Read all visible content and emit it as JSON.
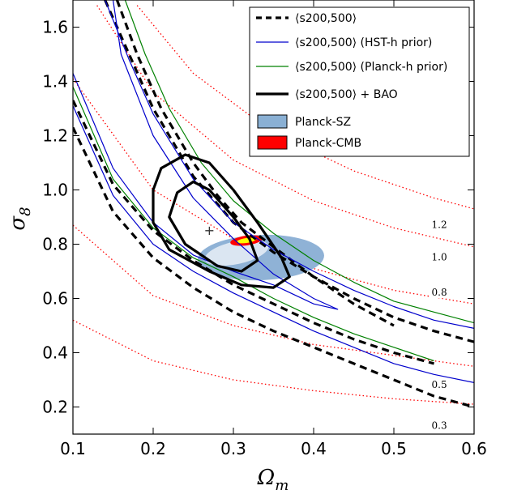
{
  "chart_data": {
    "type": "line",
    "xlabel": "Ω_m",
    "ylabel": "σ_8",
    "xlim": [
      0.1,
      0.6
    ],
    "ylim": [
      0.1,
      1.7
    ],
    "xticks": [
      0.1,
      0.2,
      0.3,
      0.4,
      0.5,
      0.6
    ],
    "yticks": [
      0.2,
      0.4,
      0.6,
      0.8,
      1.0,
      1.2,
      1.4,
      1.6
    ],
    "xtick_labels": [
      "0.1",
      "0.2",
      "0.3",
      "0.4",
      "0.5",
      "0.6"
    ],
    "ytick_labels": [
      "0.2",
      "0.4",
      "0.6",
      "0.8",
      "1.0",
      "1.2",
      "1.4",
      "1.6"
    ],
    "grid": false,
    "legend_position": "top-right",
    "legend": [
      {
        "label": "⟨s200,500⟩",
        "style": "dashed",
        "color": "#000000"
      },
      {
        "label": "⟨s200,500⟩ (HST-h prior)",
        "style": "solid",
        "color": "#0000cc"
      },
      {
        "label": "⟨s200,500⟩ (Planck-h prior)",
        "style": "solid",
        "color": "#008000"
      },
      {
        "label": "⟨s200,500⟩ + BAO",
        "style": "thick",
        "color": "#000000"
      },
      {
        "label": "Planck-SZ",
        "style": "patch",
        "color": "#8ab0d4"
      },
      {
        "label": "Planck-CMB",
        "style": "patch",
        "color": "#ff0000"
      }
    ],
    "reference_curve_labels": [
      {
        "text": "1.2",
        "x": 0.547,
        "y": 0.86
      },
      {
        "text": "1.0",
        "x": 0.547,
        "y": 0.74
      },
      {
        "text": "0.8",
        "x": 0.547,
        "y": 0.61
      },
      {
        "text": "0.5",
        "x": 0.547,
        "y": 0.27
      },
      {
        "text": "0.3",
        "x": 0.547,
        "y": 0.12
      }
    ],
    "reference_curves": [
      {
        "name": "1.2",
        "color": "#ff0000",
        "points": [
          [
            0.18,
            1.68
          ],
          [
            0.25,
            1.43
          ],
          [
            0.35,
            1.21
          ],
          [
            0.45,
            1.07
          ],
          [
            0.55,
            0.97
          ],
          [
            0.6,
            0.93
          ]
        ]
      },
      {
        "name": "1.0",
        "color": "#ff0000",
        "points": [
          [
            0.13,
            1.68
          ],
          [
            0.2,
            1.36
          ],
          [
            0.3,
            1.11
          ],
          [
            0.4,
            0.96
          ],
          [
            0.5,
            0.86
          ],
          [
            0.6,
            0.79
          ]
        ]
      },
      {
        "name": "0.8",
        "color": "#ff0000",
        "points": [
          [
            0.1,
            1.41
          ],
          [
            0.2,
            1.0
          ],
          [
            0.3,
            0.82
          ],
          [
            0.4,
            0.71
          ],
          [
            0.5,
            0.63
          ],
          [
            0.6,
            0.58
          ]
        ]
      },
      {
        "name": "0.5",
        "color": "#ff0000",
        "points": [
          [
            0.1,
            0.87
          ],
          [
            0.2,
            0.61
          ],
          [
            0.3,
            0.5
          ],
          [
            0.4,
            0.43
          ],
          [
            0.5,
            0.39
          ],
          [
            0.6,
            0.35
          ]
        ]
      },
      {
        "name": "0.3",
        "color": "#ff0000",
        "points": [
          [
            0.1,
            0.52
          ],
          [
            0.2,
            0.37
          ],
          [
            0.3,
            0.3
          ],
          [
            0.4,
            0.26
          ],
          [
            0.5,
            0.23
          ],
          [
            0.6,
            0.21
          ]
        ]
      }
    ],
    "series": [
      {
        "label": "dashed",
        "color": "#000000",
        "width": 3.2,
        "dash": "9,6",
        "points": [
          [
            0.14,
            1.7
          ],
          [
            0.17,
            1.5
          ],
          [
            0.2,
            1.3
          ],
          [
            0.25,
            1.05
          ],
          [
            0.3,
            0.88
          ],
          [
            0.35,
            0.77
          ],
          [
            0.4,
            0.68
          ],
          [
            0.45,
            0.6
          ],
          [
            0.5,
            0.53
          ],
          [
            0.55,
            0.48
          ],
          [
            0.6,
            0.44
          ]
        ]
      },
      {
        "label": "dashed",
        "color": "#000000",
        "width": 3.2,
        "dash": "9,6",
        "points": [
          [
            0.155,
            1.7
          ],
          [
            0.18,
            1.5
          ],
          [
            0.21,
            1.3
          ],
          [
            0.25,
            1.1
          ],
          [
            0.28,
            0.98
          ],
          [
            0.31,
            0.88
          ],
          [
            0.35,
            0.79
          ],
          [
            0.4,
            0.68
          ],
          [
            0.45,
            0.58
          ],
          [
            0.5,
            0.5
          ]
        ]
      },
      {
        "label": "dashed",
        "color": "#000000",
        "width": 3.2,
        "dash": "9,6",
        "points": [
          [
            0.1,
            1.33
          ],
          [
            0.15,
            1.02
          ],
          [
            0.2,
            0.85
          ],
          [
            0.25,
            0.74
          ],
          [
            0.3,
            0.65
          ],
          [
            0.35,
            0.58
          ],
          [
            0.4,
            0.51
          ],
          [
            0.45,
            0.45
          ],
          [
            0.5,
            0.4
          ],
          [
            0.55,
            0.36
          ]
        ]
      },
      {
        "label": "dashed",
        "color": "#000000",
        "width": 3.2,
        "dash": "9,6",
        "points": [
          [
            0.1,
            1.23
          ],
          [
            0.15,
            0.92
          ],
          [
            0.2,
            0.75
          ],
          [
            0.25,
            0.64
          ],
          [
            0.3,
            0.55
          ],
          [
            0.35,
            0.48
          ],
          [
            0.4,
            0.42
          ],
          [
            0.45,
            0.36
          ],
          [
            0.5,
            0.3
          ],
          [
            0.55,
            0.24
          ],
          [
            0.6,
            0.2
          ]
        ]
      },
      {
        "label": "blue",
        "color": "#0000cc",
        "width": 1.2,
        "dash": "",
        "points": [
          [
            0.14,
            1.7
          ],
          [
            0.17,
            1.48
          ],
          [
            0.2,
            1.28
          ],
          [
            0.25,
            1.04
          ],
          [
            0.3,
            0.88
          ],
          [
            0.35,
            0.78
          ],
          [
            0.4,
            0.7
          ],
          [
            0.45,
            0.63
          ],
          [
            0.5,
            0.57
          ],
          [
            0.55,
            0.52
          ],
          [
            0.6,
            0.49
          ]
        ]
      },
      {
        "label": "blue",
        "color": "#0000cc",
        "width": 1.2,
        "dash": "",
        "points": [
          [
            0.1,
            1.43
          ],
          [
            0.15,
            1.08
          ],
          [
            0.2,
            0.88
          ],
          [
            0.25,
            0.76
          ],
          [
            0.3,
            0.7
          ],
          [
            0.35,
            0.65
          ],
          [
            0.4,
            0.58
          ],
          [
            0.43,
            0.56
          ],
          [
            0.4,
            0.6
          ],
          [
            0.35,
            0.69
          ],
          [
            0.3,
            0.82
          ],
          [
            0.25,
            0.97
          ],
          [
            0.2,
            1.2
          ],
          [
            0.16,
            1.5
          ],
          [
            0.15,
            1.7
          ]
        ]
      },
      {
        "label": "blue",
        "color": "#0000cc",
        "width": 1.2,
        "dash": "",
        "points": [
          [
            0.1,
            1.31
          ],
          [
            0.15,
            0.98
          ],
          [
            0.2,
            0.8
          ],
          [
            0.25,
            0.7
          ],
          [
            0.3,
            0.62
          ],
          [
            0.35,
            0.55
          ],
          [
            0.4,
            0.48
          ],
          [
            0.45,
            0.42
          ],
          [
            0.5,
            0.36
          ],
          [
            0.55,
            0.32
          ],
          [
            0.6,
            0.29
          ]
        ]
      },
      {
        "label": "green",
        "color": "#008000",
        "width": 1.2,
        "dash": "",
        "points": [
          [
            0.165,
            1.7
          ],
          [
            0.19,
            1.5
          ],
          [
            0.22,
            1.3
          ],
          [
            0.26,
            1.1
          ],
          [
            0.3,
            0.96
          ],
          [
            0.35,
            0.84
          ],
          [
            0.4,
            0.74
          ],
          [
            0.45,
            0.66
          ],
          [
            0.5,
            0.59
          ],
          [
            0.55,
            0.55
          ],
          [
            0.6,
            0.51
          ]
        ]
      },
      {
        "label": "green",
        "color": "#008000",
        "width": 1.2,
        "dash": "",
        "points": [
          [
            0.1,
            1.38
          ],
          [
            0.15,
            1.04
          ],
          [
            0.2,
            0.86
          ],
          [
            0.25,
            0.75
          ],
          [
            0.3,
            0.68
          ],
          [
            0.35,
            0.6
          ],
          [
            0.4,
            0.53
          ],
          [
            0.45,
            0.47
          ],
          [
            0.5,
            0.42
          ],
          [
            0.55,
            0.37
          ]
        ]
      },
      {
        "label": "bao",
        "color": "#000000",
        "width": 3.2,
        "dash": "",
        "closed": true,
        "points": [
          [
            0.24,
            1.13
          ],
          [
            0.27,
            1.1
          ],
          [
            0.3,
            1.0
          ],
          [
            0.33,
            0.88
          ],
          [
            0.36,
            0.75
          ],
          [
            0.37,
            0.68
          ],
          [
            0.35,
            0.64
          ],
          [
            0.31,
            0.65
          ],
          [
            0.27,
            0.7
          ],
          [
            0.22,
            0.78
          ],
          [
            0.2,
            0.88
          ],
          [
            0.2,
            1.0
          ],
          [
            0.21,
            1.08
          ],
          [
            0.24,
            1.13
          ]
        ]
      },
      {
        "label": "bao",
        "color": "#000000",
        "width": 3.2,
        "dash": "",
        "closed": true,
        "points": [
          [
            0.25,
            1.03
          ],
          [
            0.27,
            1.0
          ],
          [
            0.3,
            0.9
          ],
          [
            0.32,
            0.82
          ],
          [
            0.33,
            0.74
          ],
          [
            0.31,
            0.7
          ],
          [
            0.28,
            0.72
          ],
          [
            0.24,
            0.8
          ],
          [
            0.22,
            0.9
          ],
          [
            0.23,
            0.99
          ],
          [
            0.25,
            1.03
          ]
        ]
      }
    ],
    "marker": {
      "x": 0.27,
      "y": 0.85,
      "symbol": "+"
    }
  }
}
